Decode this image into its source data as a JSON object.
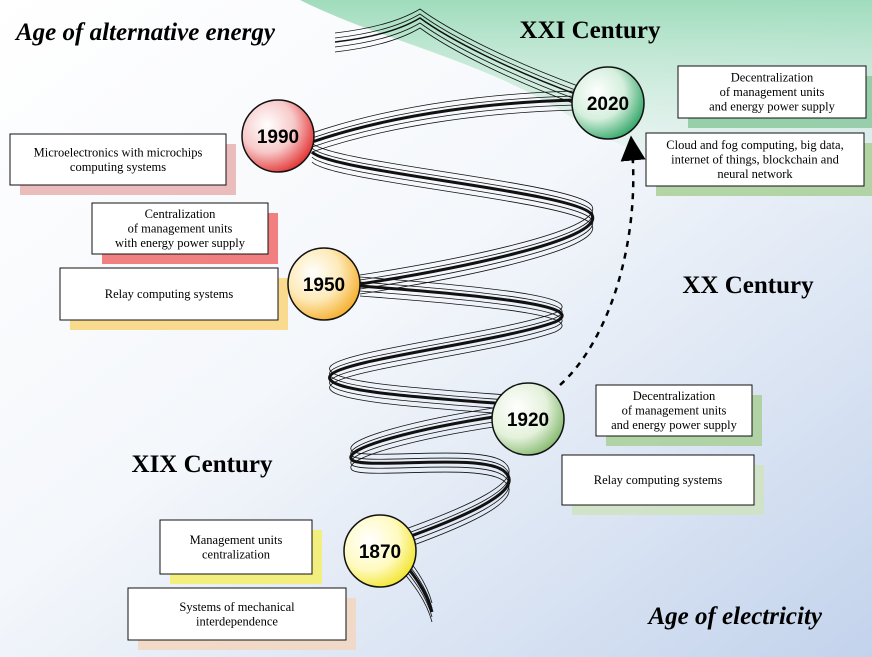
{
  "eras": [
    "Age of alternative energy",
    "Age of electricity"
  ],
  "centuries": [
    "XXI Century",
    "XX Century",
    "XIX Century"
  ],
  "milestones": [
    "2020",
    "1990",
    "1950",
    "1920",
    "1870"
  ],
  "notes": [
    [
      "Decentralization",
      "of management units",
      "and energy power supply"
    ],
    [
      "Cloud and fog computing, big data,",
      "internet of things, blockchain and",
      "neural network"
    ],
    [
      "Microelectronics with microchips",
      "computing systems"
    ],
    [
      "Centralization",
      "of management units",
      "with energy power supply"
    ],
    [
      "Relay computing systems"
    ],
    [
      "Decentralization",
      "of management units",
      "and energy power supply"
    ],
    [
      "Relay computing systems"
    ],
    [
      "Management units",
      "centralization"
    ],
    [
      "Systems of mechanical",
      "interdependence"
    ]
  ]
}
